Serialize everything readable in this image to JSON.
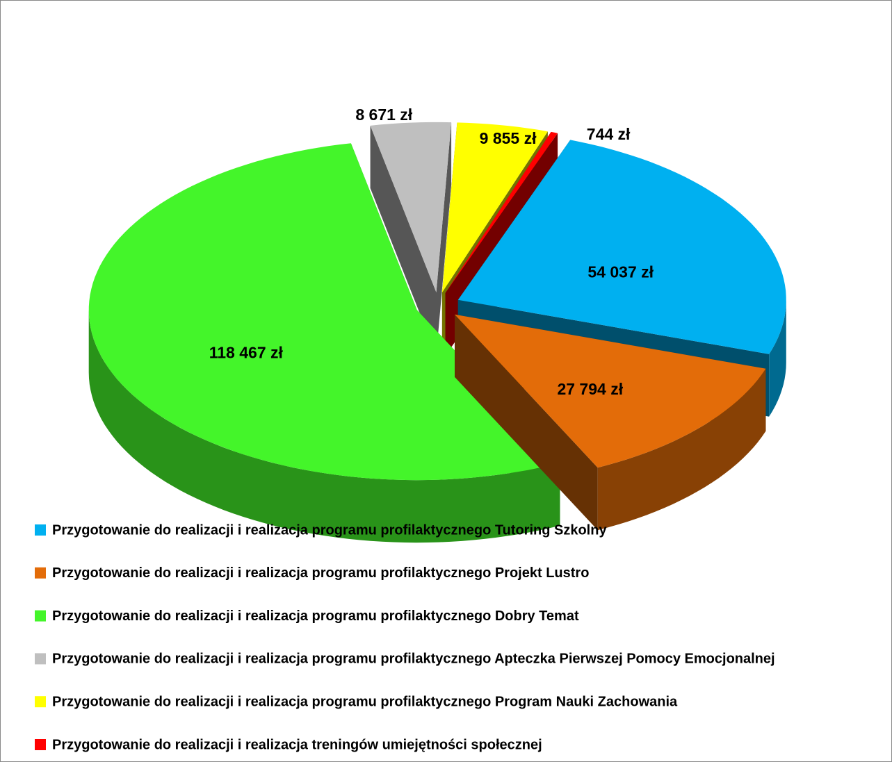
{
  "chart_data": {
    "type": "pie3d",
    "categories": [
      "Przygotowanie do realizacji i realizacja programu profilaktycznego Tutoring Szkolny",
      "Przygotowanie do realizacji i realizacja programu profilaktycznego Projekt Lustro",
      "Przygotowanie do realizacji i realizacja programu profilaktycznego Dobry Temat",
      "Przygotowanie do realizacji i realizacja programu profilaktycznego Apteczka Pierwszej Pomocy Emocjonalnej",
      "Przygotowanie do realizacji i realizacja programu profilaktycznego Program Nauki Zachowania",
      "Przygotowanie do realizacji i realizacja treningów umiejętności społecznej"
    ],
    "values": [
      54037,
      27794,
      118467,
      8671,
      9855,
      744
    ],
    "value_labels": [
      "54 037 zł",
      "27 794 zł",
      "118 467 zł",
      "8 671 zł",
      "9 855 zł",
      "744 zł"
    ],
    "colors": [
      "#00b0f0",
      "#e36c09",
      "#44f52a",
      "#bfbfbf",
      "#ffff00",
      "#ff0000"
    ],
    "legend": "bottom"
  }
}
